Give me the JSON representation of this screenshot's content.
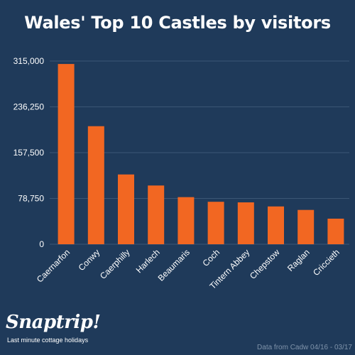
{
  "chart_data": {
    "type": "bar",
    "title": "Wales' Top 10 Castles by visitors",
    "categories": [
      "Caernarfon",
      "Conwy",
      "Caerphilly",
      "Harlech",
      "Beaumaris",
      "Coch",
      "Tintern Abbey",
      "Chepstow",
      "Raglan",
      "Criccieth"
    ],
    "values": [
      310000,
      203000,
      120000,
      101000,
      81000,
      73000,
      72000,
      65000,
      59000,
      44000
    ],
    "ylim": [
      0,
      315000
    ],
    "yticks": [
      0,
      78750,
      157500,
      236250,
      315000
    ],
    "ytick_labels": [
      "0",
      "78,750",
      "157,500",
      "236,250",
      "315,000"
    ],
    "grid": true,
    "bar_color": "#f26722",
    "xlabel": "",
    "ylabel": ""
  },
  "branding": {
    "name": "Snaptrip!",
    "tagline": "Last minute cottage holidays"
  },
  "source_note": "Data from Cadw 04/16 - 03/17"
}
